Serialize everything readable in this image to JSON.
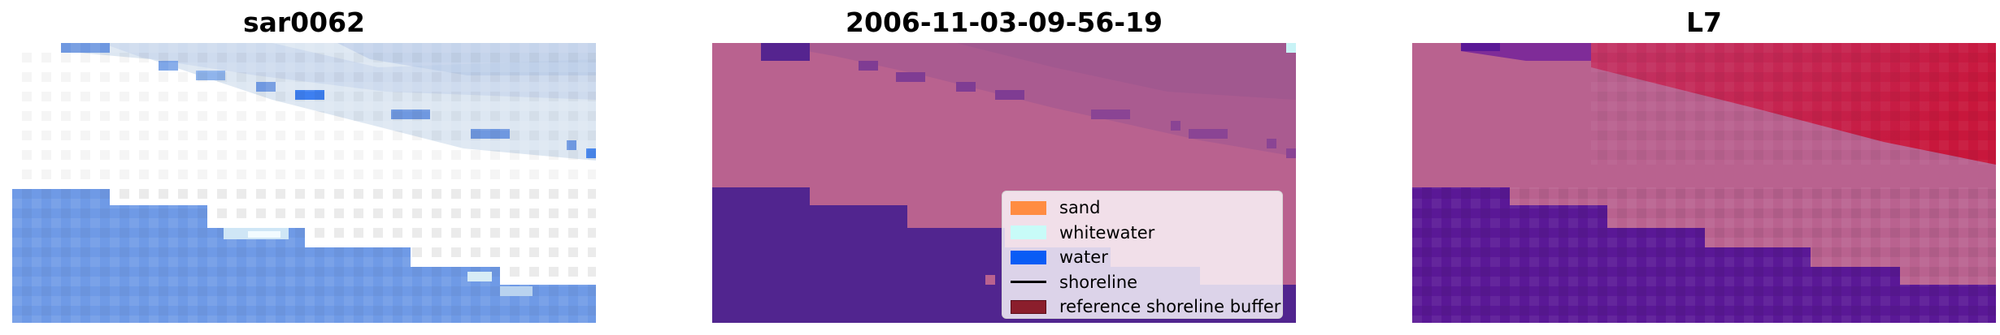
{
  "panels": [
    {
      "title": "sar0062"
    },
    {
      "title": "2006-11-03-09-56-19"
    },
    {
      "title": "L7"
    }
  ],
  "legend": {
    "items": [
      {
        "label": "sand",
        "color": "#ff8c42",
        "kind": "patch"
      },
      {
        "label": "whitewater",
        "color": "#c8fbf8",
        "kind": "patch"
      },
      {
        "label": "water",
        "color": "#0a5cf5",
        "kind": "patch"
      },
      {
        "label": "shoreline",
        "color": "#000000",
        "kind": "line"
      },
      {
        "label": "reference shoreline buffer",
        "color": "#8b1e2c",
        "kind": "patch"
      }
    ]
  },
  "colors": {
    "sar_water": "#6f9ae6",
    "sar_whitewater": "#e8f0f6",
    "class_land": "#b9628f",
    "class_water": "#51258f",
    "l7_red": "#c8173c",
    "l7_purple": "#5a1896"
  }
}
